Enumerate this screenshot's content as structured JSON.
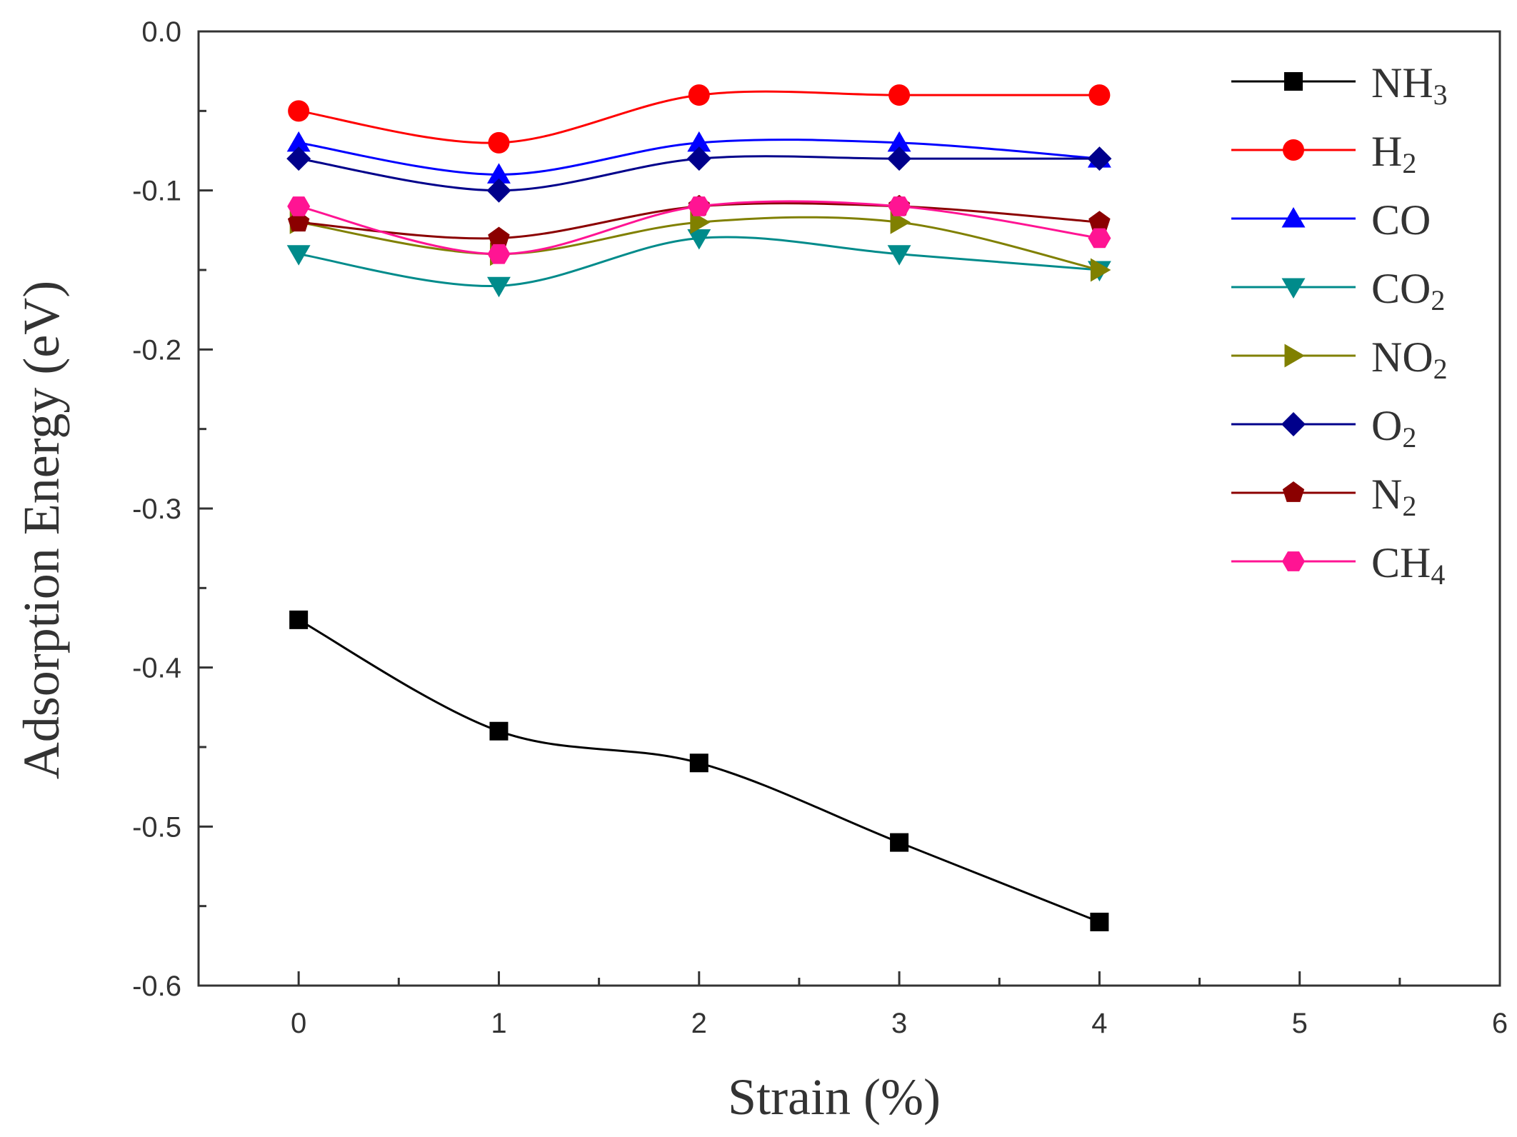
{
  "chart_data": {
    "type": "line",
    "title": "",
    "xlabel": "Strain (%)",
    "ylabel": "Adsorption Energy (eV)",
    "xlim": [
      -0.5,
      6
    ],
    "ylim": [
      -0.6,
      0.0
    ],
    "xticks": [
      0,
      1,
      2,
      3,
      4,
      5,
      6
    ],
    "xtick_labels": [
      "0",
      "1",
      "2",
      "3",
      "4",
      "5",
      "6"
    ],
    "yticks": [
      0.0,
      -0.1,
      -0.2,
      -0.3,
      -0.4,
      -0.5,
      -0.6
    ],
    "ytick_labels": [
      "0.0",
      "-0.1",
      "-0.2",
      "-0.3",
      "-0.4",
      "-0.5",
      "-0.6"
    ],
    "grid": false,
    "legend_position": "top-right",
    "x": [
      0,
      1,
      2,
      3,
      4
    ],
    "series": [
      {
        "name": "NH3",
        "label_main": "NH",
        "label_sub": "3",
        "color": "#000000",
        "marker": "square",
        "values": [
          -0.37,
          -0.44,
          -0.46,
          -0.51,
          -0.56
        ]
      },
      {
        "name": "H2",
        "label_main": "H",
        "label_sub": "2",
        "color": "#ff0000",
        "marker": "circle",
        "values": [
          -0.05,
          -0.07,
          -0.04,
          -0.04,
          -0.04
        ]
      },
      {
        "name": "CO",
        "label_main": "CO",
        "label_sub": "",
        "color": "#0000ff",
        "marker": "triangle-up",
        "values": [
          -0.07,
          -0.09,
          -0.07,
          -0.07,
          -0.08
        ]
      },
      {
        "name": "CO2",
        "label_main": "CO",
        "label_sub": "2",
        "color": "#008b8b",
        "marker": "triangle-down",
        "values": [
          -0.14,
          -0.16,
          -0.13,
          -0.14,
          -0.15
        ]
      },
      {
        "name": "NO2",
        "label_main": "NO",
        "label_sub": "2",
        "color": "#808000",
        "marker": "triangle-right",
        "values": [
          -0.12,
          -0.14,
          -0.12,
          -0.12,
          -0.15
        ]
      },
      {
        "name": "O2",
        "label_main": "O",
        "label_sub": "2",
        "color": "#00008b",
        "marker": "diamond",
        "values": [
          -0.08,
          -0.1,
          -0.08,
          -0.08,
          -0.08
        ]
      },
      {
        "name": "N2",
        "label_main": "N",
        "label_sub": "2",
        "color": "#8b0000",
        "marker": "pentagon",
        "values": [
          -0.12,
          -0.13,
          -0.11,
          -0.11,
          -0.12
        ]
      },
      {
        "name": "CH4",
        "label_main": "CH",
        "label_sub": "4",
        "color": "#ff1493",
        "marker": "hexagon",
        "values": [
          -0.11,
          -0.14,
          -0.11,
          -0.11,
          -0.13
        ]
      }
    ]
  }
}
